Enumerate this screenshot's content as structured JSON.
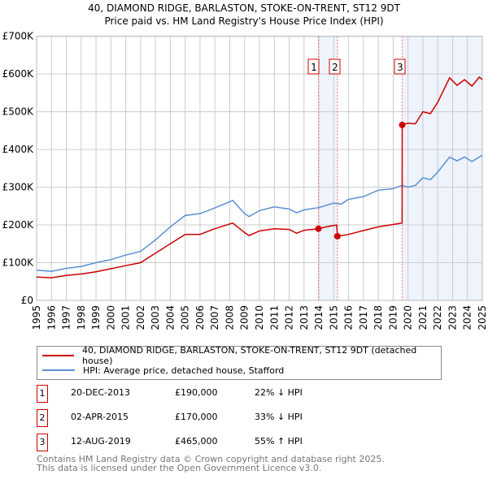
{
  "chart_data": {
    "type": "line",
    "title": "40, DIAMOND RIDGE, BARLASTON, STOKE-ON-TRENT, ST12 9DT",
    "subtitle": "Price paid vs. HM Land Registry's House Price Index (HPI)",
    "xlim": [
      1995,
      2025
    ],
    "ylim": [
      0,
      700000
    ],
    "x_ticks": [
      "1995",
      "1996",
      "1997",
      "1998",
      "1999",
      "2000",
      "2001",
      "2002",
      "2003",
      "2004",
      "2005",
      "2006",
      "2007",
      "2008",
      "2009",
      "2010",
      "2011",
      "2012",
      "2013",
      "2014",
      "2015",
      "2016",
      "2017",
      "2018",
      "2019",
      "2020",
      "2021",
      "2022",
      "2023",
      "2024",
      "2025"
    ],
    "y_ticks": [
      {
        "v": 0,
        "label": "£0"
      },
      {
        "v": 100000,
        "label": "£100K"
      },
      {
        "v": 200000,
        "label": "£200K"
      },
      {
        "v": 300000,
        "label": "£300K"
      },
      {
        "v": 400000,
        "label": "£400K"
      },
      {
        "v": 500000,
        "label": "£500K"
      },
      {
        "v": 600000,
        "label": "£600K"
      },
      {
        "v": 700000,
        "label": "£700K"
      }
    ],
    "grid": true,
    "series": [
      {
        "name": "40, DIAMOND RIDGE, BARLASTON, STOKE-ON-TRENT, ST12 9DT (detached house)",
        "color": "#cc0000",
        "x": [
          1995,
          1996,
          1997,
          1998,
          1999,
          2000,
          2001,
          2002,
          2003,
          2004,
          2005,
          2006,
          2007,
          2008.2,
          2009,
          2009.3,
          2010,
          2011,
          2012,
          2012.5,
          2013,
          2013.97,
          2014.5,
          2015.2,
          2015.25,
          2016,
          2017,
          2018,
          2019.6,
          2019.61,
          2020,
          2020.5,
          2021,
          2021.5,
          2022,
          2022.8,
          2023.3,
          2023.8,
          2024.3,
          2024.8,
          2025
        ],
        "y": [
          62000,
          60000,
          66000,
          70000,
          76000,
          84000,
          92000,
          100000,
          125000,
          150000,
          175000,
          175000,
          190000,
          205000,
          180000,
          172000,
          184000,
          190000,
          188000,
          178000,
          186000,
          190000,
          195000,
          200000,
          170000,
          175000,
          185000,
          195000,
          205000,
          465000,
          470000,
          468000,
          500000,
          495000,
          525000,
          590000,
          570000,
          585000,
          568000,
          592000,
          585000
        ]
      },
      {
        "name": "HPI: Average price, detached house, Stafford",
        "color": "#5b8fd4",
        "x": [
          1995,
          1996,
          1997,
          1998,
          1999,
          2000,
          2001,
          2002,
          2003,
          2004,
          2005,
          2006,
          2007,
          2008.2,
          2009,
          2009.3,
          2010,
          2011,
          2012,
          2012.5,
          2013,
          2014,
          2015,
          2015.5,
          2016,
          2017,
          2018,
          2019,
          2019.6,
          2020,
          2020.5,
          2021,
          2021.5,
          2022,
          2022.8,
          2023.3,
          2023.8,
          2024.3,
          2025
        ],
        "y": [
          80000,
          77000,
          85000,
          90000,
          100000,
          108000,
          120000,
          130000,
          160000,
          195000,
          225000,
          230000,
          245000,
          265000,
          230000,
          222000,
          238000,
          248000,
          242000,
          232000,
          240000,
          246000,
          258000,
          255000,
          268000,
          275000,
          292000,
          296000,
          305000,
          300000,
          305000,
          325000,
          320000,
          340000,
          380000,
          370000,
          380000,
          368000,
          385000
        ]
      }
    ],
    "sales": [
      {
        "id": "1",
        "x": 2013.97,
        "date": "20-DEC-2013",
        "price_value": 190000,
        "price": "£190,000",
        "hpi": "22% ↓ HPI"
      },
      {
        "id": "2",
        "x": 2015.25,
        "date": "02-APR-2015",
        "price_value": 170000,
        "price": "£170,000",
        "hpi": "33% ↓ HPI"
      },
      {
        "id": "3",
        "x": 2019.61,
        "date": "12-AUG-2019",
        "price_value": 465000,
        "price": "£465,000",
        "hpi": "55% ↑ HPI"
      }
    ],
    "shaded_ranges": [
      [
        2013.97,
        2015.25
      ],
      [
        2019.61,
        2025
      ]
    ],
    "legend_position": "bottom"
  },
  "footer": {
    "line1": "Contains HM Land Registry data © Crown copyright and database right 2025.",
    "line2": "This data is licensed under the Open Government Licence v3.0."
  }
}
